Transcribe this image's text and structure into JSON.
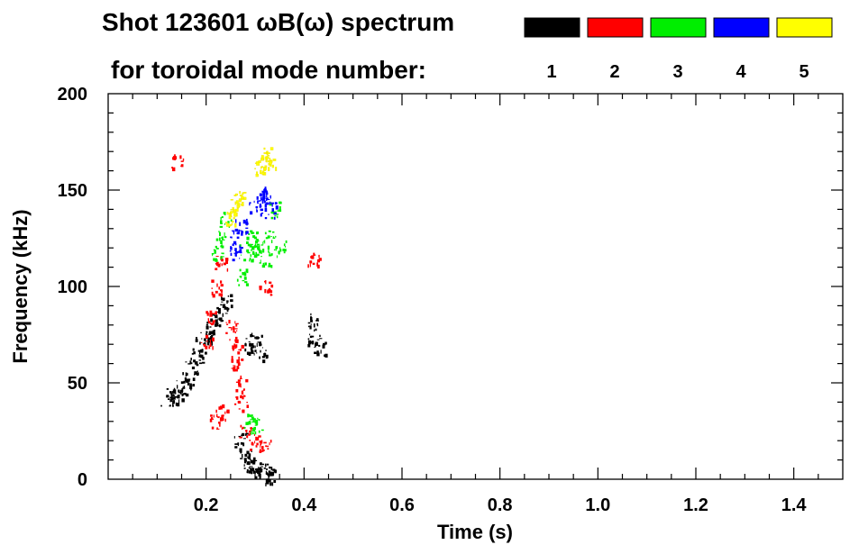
{
  "chart_data": {
    "type": "heatmap",
    "title": "Shot 123601 ωB(ω) spectrum",
    "subtitle": "for toroidal mode number:",
    "xlabel": "Time (s)",
    "ylabel": "Frequency (kHz)",
    "xlim": [
      0.0,
      1.5
    ],
    "ylim": [
      0,
      200
    ],
    "x_ticks": [
      "0.2",
      "0.4",
      "0.6",
      "0.8",
      "1.0",
      "1.2",
      "1.4"
    ],
    "x_tick_values": [
      0.2,
      0.4,
      0.6,
      0.8,
      1.0,
      1.2,
      1.4
    ],
    "y_ticks": [
      "0",
      "50",
      "100",
      "150",
      "200"
    ],
    "y_tick_values": [
      0,
      50,
      100,
      150,
      200
    ],
    "legend_placement": "top-right",
    "legend": [
      {
        "label": "1",
        "color": "#000000"
      },
      {
        "label": "2",
        "color": "#ff0000"
      },
      {
        "label": "3",
        "color": "#00ee00"
      },
      {
        "label": "4",
        "color": "#0000ff"
      },
      {
        "label": "5",
        "color": "#ffff00"
      }
    ],
    "series": [
      {
        "mode": "1",
        "color": "#000000",
        "points": [
          [
            0.12,
            42
          ],
          [
            0.13,
            43
          ],
          [
            0.14,
            45
          ],
          [
            0.15,
            48
          ],
          [
            0.16,
            52
          ],
          [
            0.17,
            58
          ],
          [
            0.18,
            64
          ],
          [
            0.19,
            70
          ],
          [
            0.2,
            74
          ],
          [
            0.21,
            78
          ],
          [
            0.22,
            84
          ],
          [
            0.23,
            88
          ],
          [
            0.24,
            92
          ],
          [
            0.29,
            70
          ],
          [
            0.3,
            72
          ],
          [
            0.31,
            66
          ],
          [
            0.27,
            20
          ],
          [
            0.28,
            12
          ],
          [
            0.29,
            8
          ],
          [
            0.3,
            6
          ],
          [
            0.31,
            5
          ],
          [
            0.32,
            4
          ],
          [
            0.33,
            2
          ],
          [
            0.42,
            74
          ],
          [
            0.43,
            68
          ],
          [
            0.42,
            82
          ]
        ]
      },
      {
        "mode": "2",
        "color": "#ff0000",
        "points": [
          [
            0.14,
            165
          ],
          [
            0.2,
            72
          ],
          [
            0.21,
            85
          ],
          [
            0.22,
            100
          ],
          [
            0.23,
            112
          ],
          [
            0.25,
            80
          ],
          [
            0.26,
            70
          ],
          [
            0.26,
            60
          ],
          [
            0.27,
            50
          ],
          [
            0.27,
            40
          ],
          [
            0.22,
            30
          ],
          [
            0.23,
            35
          ],
          [
            0.28,
            24
          ],
          [
            0.3,
            20
          ],
          [
            0.32,
            18
          ],
          [
            0.32,
            100
          ],
          [
            0.42,
            115
          ]
        ]
      },
      {
        "mode": "3",
        "color": "#00ee00",
        "points": [
          [
            0.22,
            118
          ],
          [
            0.23,
            125
          ],
          [
            0.24,
            135
          ],
          [
            0.27,
            105
          ],
          [
            0.28,
            118
          ],
          [
            0.29,
            125
          ],
          [
            0.3,
            118
          ],
          [
            0.31,
            122
          ],
          [
            0.32,
            115
          ],
          [
            0.33,
            125
          ],
          [
            0.29,
            30
          ],
          [
            0.3,
            28
          ],
          [
            0.34,
            140
          ],
          [
            0.35,
            120
          ]
        ]
      },
      {
        "mode": "4",
        "color": "#0000ff",
        "points": [
          [
            0.26,
            125
          ],
          [
            0.27,
            132
          ],
          [
            0.26,
            118
          ],
          [
            0.3,
            142
          ],
          [
            0.31,
            146
          ],
          [
            0.32,
            148
          ],
          [
            0.33,
            140
          ]
        ]
      },
      {
        "mode": "5",
        "color": "#ffff00",
        "points": [
          [
            0.25,
            136
          ],
          [
            0.26,
            142
          ],
          [
            0.27,
            146
          ],
          [
            0.31,
            162
          ],
          [
            0.32,
            168
          ],
          [
            0.33,
            164
          ]
        ]
      }
    ]
  }
}
